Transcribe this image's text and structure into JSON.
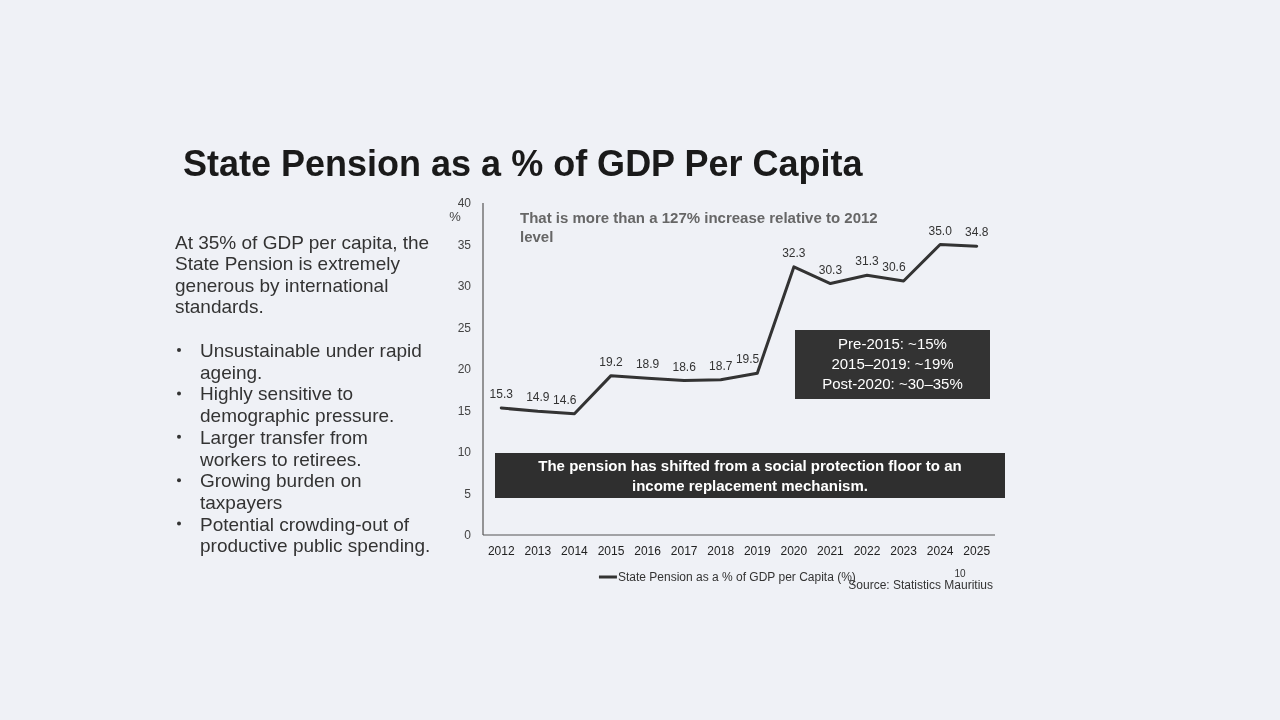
{
  "chart_data": {
    "type": "line",
    "title": "State Pension as a % of GDP Per Capita",
    "ylabel": "%",
    "categories": [
      "2012",
      "2013",
      "2014",
      "2015",
      "2016",
      "2017",
      "2018",
      "2019",
      "2020",
      "2021",
      "2022",
      "2023",
      "2024",
      "2025"
    ],
    "series": [
      {
        "name": "State Pension as a % of GDP per Capita (%)",
        "color": "#333333",
        "values": [
          15.3,
          14.9,
          14.6,
          19.2,
          18.9,
          18.6,
          18.7,
          19.5,
          32.3,
          30.3,
          31.3,
          30.6,
          35.0,
          34.8
        ],
        "value_labels": [
          "15.3",
          "14.9",
          "14.6",
          "19.2",
          "18.9",
          "18.6",
          "18.7",
          "19.5",
          "32.3",
          "30.3",
          "31.3",
          "30.6",
          "35.0",
          "34.8"
        ]
      }
    ],
    "ylim": [
      0,
      40
    ],
    "yticks": [
      0,
      5,
      10,
      15,
      20,
      25,
      30,
      35,
      40
    ],
    "legend": "bottom",
    "annotations": [
      "That is more than a 127% increase relative to 2012 level",
      "Pre-2015: ~15%",
      "2015–2019: ~19%",
      "Post-2020: ~30–35%",
      "The pension has shifted from a social protection floor to an income replacement mechanism.",
      "At 35% of GDP per capita, the State Pension is extremely generous by international standards.",
      "Unsustainable under rapid ageing.",
      "Highly sensitive to demographic pressure.",
      "Larger transfer from workers to retirees.",
      "Growing burden on taxpayers",
      "Potential crowding-out of productive public spending.",
      "Source: Statistics Mauritius",
      "10"
    ]
  }
}
